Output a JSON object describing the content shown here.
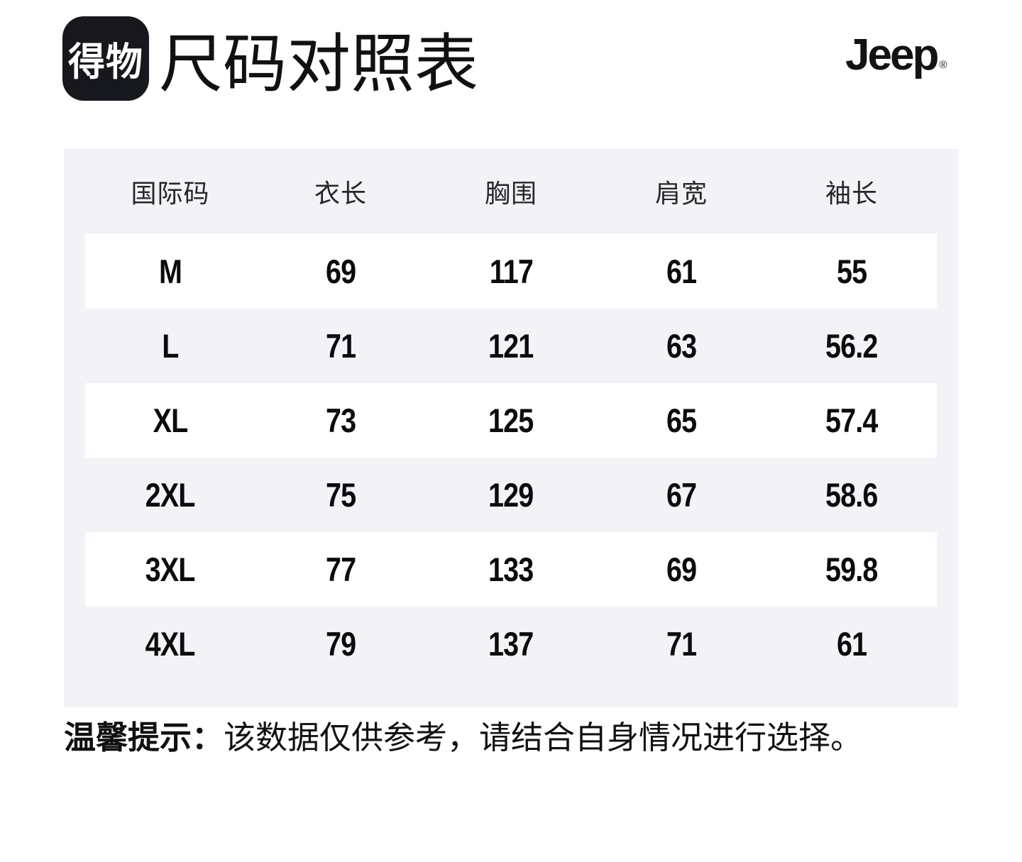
{
  "header": {
    "logo_text": "得物",
    "title": "尺码对照表",
    "brand": "Jeep",
    "brand_reg": "®"
  },
  "table": {
    "columns": [
      "国际码",
      "衣长",
      "胸围",
      "肩宽",
      "袖长"
    ],
    "rows": [
      {
        "size": "M",
        "values": [
          "69",
          "117",
          "61",
          "55"
        ]
      },
      {
        "size": "L",
        "values": [
          "71",
          "121",
          "63",
          "56.2"
        ]
      },
      {
        "size": "XL",
        "values": [
          "73",
          "125",
          "65",
          "57.4"
        ]
      },
      {
        "size": "2XL",
        "values": [
          "75",
          "129",
          "67",
          "58.6"
        ]
      },
      {
        "size": "3XL",
        "values": [
          "77",
          "133",
          "69",
          "59.8"
        ]
      },
      {
        "size": "4XL",
        "values": [
          "79",
          "137",
          "71",
          "61"
        ]
      }
    ]
  },
  "footer": {
    "note_label": "温馨提示：",
    "note_text": "该数据仅供参考，请结合自身情况进行选择。"
  },
  "colors": {
    "page_bg": "#ffffff",
    "table_bg": "#f3f3f7",
    "row_alt_bg": "#ffffff",
    "text": "#111111",
    "logo_bg": "#17181d",
    "logo_text_color": "#ffffff"
  }
}
